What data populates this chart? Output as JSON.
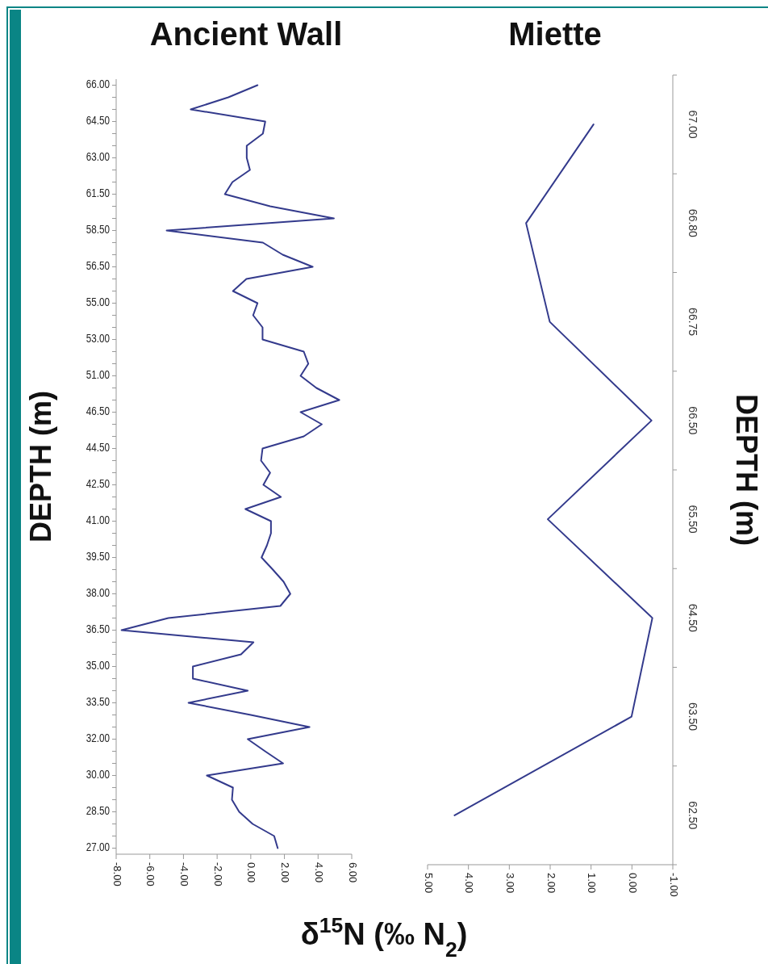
{
  "chart_data": [
    {
      "type": "line",
      "title": "Ancient Wall",
      "ylabel": "DEPTH (m)",
      "xlabel": "δ$^{15}$N (‰ N$_{2}$)",
      "orientation": "horizontal",
      "categories": [
        "66.00",
        null,
        null,
        "64.50",
        null,
        null,
        "63.00",
        null,
        null,
        "61.50",
        null,
        null,
        "58.50",
        null,
        null,
        "56.50",
        null,
        null,
        "55.00",
        null,
        null,
        "53.00",
        null,
        null,
        "51.00",
        null,
        null,
        "46.50",
        null,
        null,
        "44.50",
        null,
        null,
        "42.50",
        null,
        null,
        "41.00",
        null,
        null,
        "39.50",
        null,
        null,
        "38.00",
        null,
        null,
        "36.50",
        null,
        null,
        "35.00",
        null,
        null,
        "33.50",
        null,
        null,
        "32.00",
        null,
        null,
        "30.00",
        null,
        null,
        "28.50",
        null,
        null,
        "27.00"
      ],
      "series": [
        {
          "color": "#333a8c",
          "values": [
            0.4,
            -1.33,
            -3.57,
            0.86,
            0.72,
            -0.24,
            -0.24,
            -0.05,
            -1.09,
            -1.54,
            1.15,
            4.94,
            -5.0,
            0.72,
            1.9,
            3.68,
            -0.26,
            -1.06,
            0.4,
            0.14,
            0.7,
            0.7,
            3.15,
            3.42,
            2.96,
            3.9,
            5.26,
            2.96,
            4.22,
            3.15,
            0.7,
            0.61,
            1.15,
            0.75,
            1.79,
            -0.32,
            1.2,
            1.2,
            0.96,
            0.64,
            1.31,
            1.95,
            2.35,
            1.76,
            -4.9,
            -7.68,
            0.16,
            -0.58,
            -3.44,
            -3.44,
            -0.18,
            -3.7,
            0.0,
            3.49,
            -0.18,
            0.85,
            1.92,
            -2.61,
            -1.06,
            -1.12,
            -0.69,
            0.11,
            1.39,
            1.6
          ]
        }
      ],
      "xlim": [
        -8,
        6
      ],
      "xticks": [
        {
          "value": -8,
          "label": "-8.00"
        },
        {
          "value": -6,
          "label": "-6.00"
        },
        {
          "value": -4,
          "label": "-4.00"
        },
        {
          "value": -2,
          "label": "-2.00"
        },
        {
          "value": 0,
          "label": "0.00"
        },
        {
          "value": 2,
          "label": "2.00"
        },
        {
          "value": 4,
          "label": "4.00"
        },
        {
          "value": 6,
          "label": "6.00"
        }
      ]
    },
    {
      "type": "line",
      "title": "Miette",
      "ylabel": "DEPTH (m)",
      "orientation": "horizontal",
      "categories": [
        "67.00",
        "66.80",
        "66.75",
        "66.50",
        "65.50",
        "64.50",
        "63.50",
        "62.50"
      ],
      "series": [
        {
          "color": "#333a8c",
          "values": [
            0.94,
            2.59,
            2.01,
            -0.48,
            2.06,
            -0.5,
            0.01,
            4.34
          ]
        }
      ],
      "xlim": [
        5,
        -1
      ],
      "xticks": [
        {
          "value": 5,
          "label": "5.00"
        },
        {
          "value": 4,
          "label": "4.00"
        },
        {
          "value": 3,
          "label": "3.00"
        },
        {
          "value": 2,
          "label": "2.00"
        },
        {
          "value": 1,
          "label": "1.00"
        },
        {
          "value": 0,
          "label": "0.00"
        },
        {
          "value": -1,
          "label": "-1.00"
        }
      ]
    }
  ]
}
